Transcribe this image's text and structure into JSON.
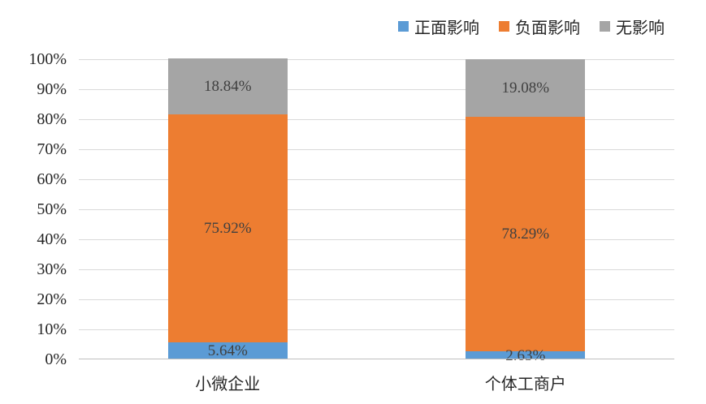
{
  "chart_data": {
    "type": "bar",
    "variant": "stacked-100-percent",
    "title": "",
    "categories": [
      "小微企业",
      "个体工商户"
    ],
    "series": [
      {
        "name": "正面影响",
        "color": "#5B9BD5",
        "values": [
          5.64,
          2.63
        ],
        "labels": [
          "5.64%",
          "2.63%"
        ]
      },
      {
        "name": "负面影响",
        "color": "#ED7D31",
        "values": [
          75.92,
          78.29
        ],
        "labels": [
          "75.92%",
          "78.29%"
        ]
      },
      {
        "name": "无影响",
        "color": "#A5A5A5",
        "values": [
          18.84,
          19.08
        ],
        "labels": [
          "18.84%",
          "19.08%"
        ]
      }
    ],
    "y_axis": {
      "min": 0,
      "max": 100,
      "step": 10,
      "tick_labels": [
        "0%",
        "10%",
        "20%",
        "30%",
        "40%",
        "50%",
        "60%",
        "70%",
        "80%",
        "90%",
        "100%"
      ]
    },
    "legend": {
      "position": "top",
      "entries": [
        "正面影响",
        "负面影响",
        "无影响"
      ]
    },
    "grid": true
  },
  "style": {
    "background": "#FFFFFF",
    "gridline_color": "#D9D9D9",
    "axis_line_color": "#BFBFBF",
    "data_label_color": "#404040",
    "tick_label_color": "#262626"
  }
}
